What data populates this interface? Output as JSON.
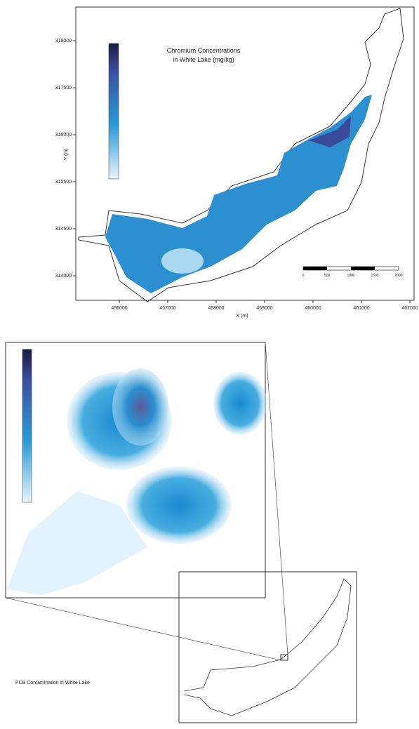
{
  "top_map": {
    "title_line1": "Chromium Concentrations",
    "title_line2": "in White Lake (mg/kg)",
    "y_axis_label": "Y (m)",
    "x_axis_label": "X (m)",
    "x_ticks": [
      "456000",
      "457000",
      "458000",
      "459000",
      "460000",
      "461000",
      "462000"
    ],
    "y_ticks": [
      "318000",
      "317500",
      "316000",
      "315500",
      "314500",
      "314000"
    ],
    "scale_labels": [
      "0",
      "500",
      "1000",
      "1500",
      "2000"
    ]
  },
  "bottom_map": {
    "caption": "PCB Contamination in White Lake"
  }
}
